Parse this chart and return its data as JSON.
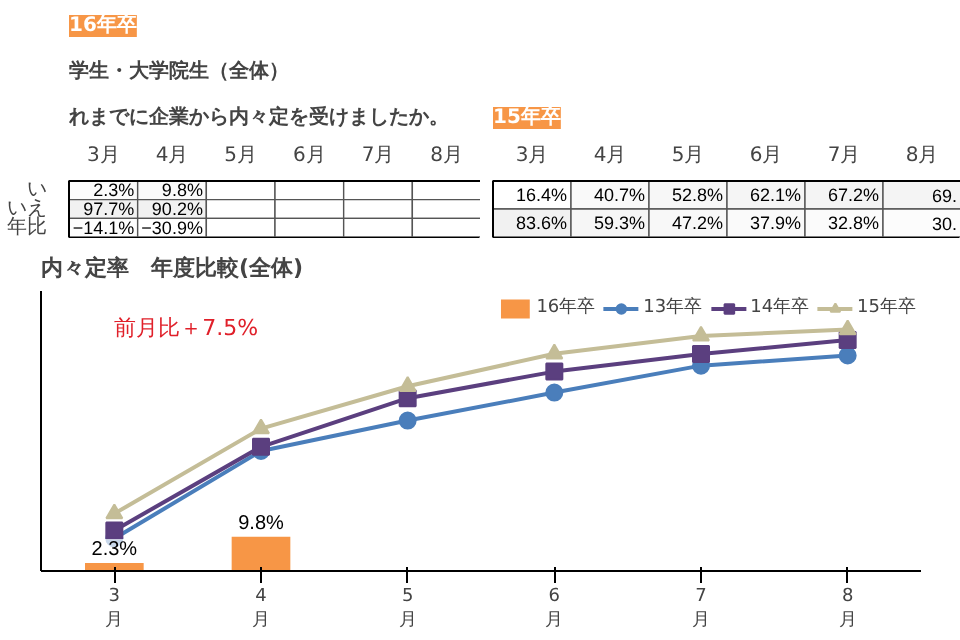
{
  "chart_data": [
    {
      "type": "heatmap",
      "title": "16年卒",
      "annotations": [
        "学生・大学院生（全体）",
        "れまでに企業から内々定を受けましたか。"
      ],
      "categories": [
        "3月",
        "4月",
        "5月",
        "6月",
        "7月",
        "8月"
      ],
      "y_categories": [
        "い",
        "いえ",
        "年比"
      ],
      "cells": [
        [
          2.3,
          9.8,
          null,
          null,
          null,
          null
        ],
        [
          97.7,
          90.2,
          null,
          null,
          null,
          null
        ],
        [
          -14.1,
          -30.9,
          null,
          null,
          null,
          null
        ]
      ],
      "cell_labels": [
        [
          "2.3%",
          "9.8%",
          null,
          null,
          null,
          null
        ],
        [
          "97.7%",
          "90.2%",
          null,
          null,
          null,
          null
        ],
        [
          "−14.1%",
          "−30.9%",
          null,
          null,
          null,
          null
        ]
      ]
    },
    {
      "type": "heatmap",
      "title": "15年卒",
      "categories": [
        "3月",
        "4月",
        "5月",
        "6月",
        "7月",
        "8月"
      ],
      "y_categories": [
        null,
        null
      ],
      "cells": [
        [
          16.4,
          40.7,
          52.8,
          62.1,
          67.2,
          69
        ],
        [
          83.6,
          59.3,
          47.2,
          37.9,
          32.8,
          30
        ]
      ],
      "cell_labels": [
        [
          "16.4%",
          "40.7%",
          "52.8%",
          "62.1%",
          "67.2%",
          "69."
        ],
        [
          "83.6%",
          "59.3%",
          "47.2%",
          "37.9%",
          "32.8%",
          "30."
        ]
      ]
    },
    {
      "type": "line",
      "title": "内々定率　年度比較(全体)",
      "annotations": [
        "前月比＋7.5%"
      ],
      "categories": [
        "3\n月",
        "4\n月",
        "5\n月",
        "6\n月",
        "7\n月",
        "8\n月"
      ],
      "legend": "top right",
      "tick_labels": "x",
      "series": [
        {
          "name": "16年卒",
          "type": "bar",
          "color": "#f79646",
          "values": [
            2.3,
            9.8,
            null,
            null,
            null,
            null
          ],
          "value_labels": [
            "2.3%",
            "9.8%",
            null,
            null,
            null,
            null
          ]
        },
        {
          "name": "13年卒",
          "color": "#4a7ebb",
          "marker": "circle",
          "values": [
            9.3,
            34.3,
            43,
            51,
            58.7,
            61.6
          ]
        },
        {
          "name": "14年卒",
          "color": "#5b3f7f",
          "marker": "square",
          "values": [
            11.6,
            35.5,
            49.4,
            57,
            62,
            66
          ]
        },
        {
          "name": "15年卒",
          "color": "#c4bd97",
          "marker": "triangle",
          "values": [
            16.4,
            40.7,
            52.8,
            62.1,
            67.2,
            69
          ]
        }
      ]
    }
  ]
}
